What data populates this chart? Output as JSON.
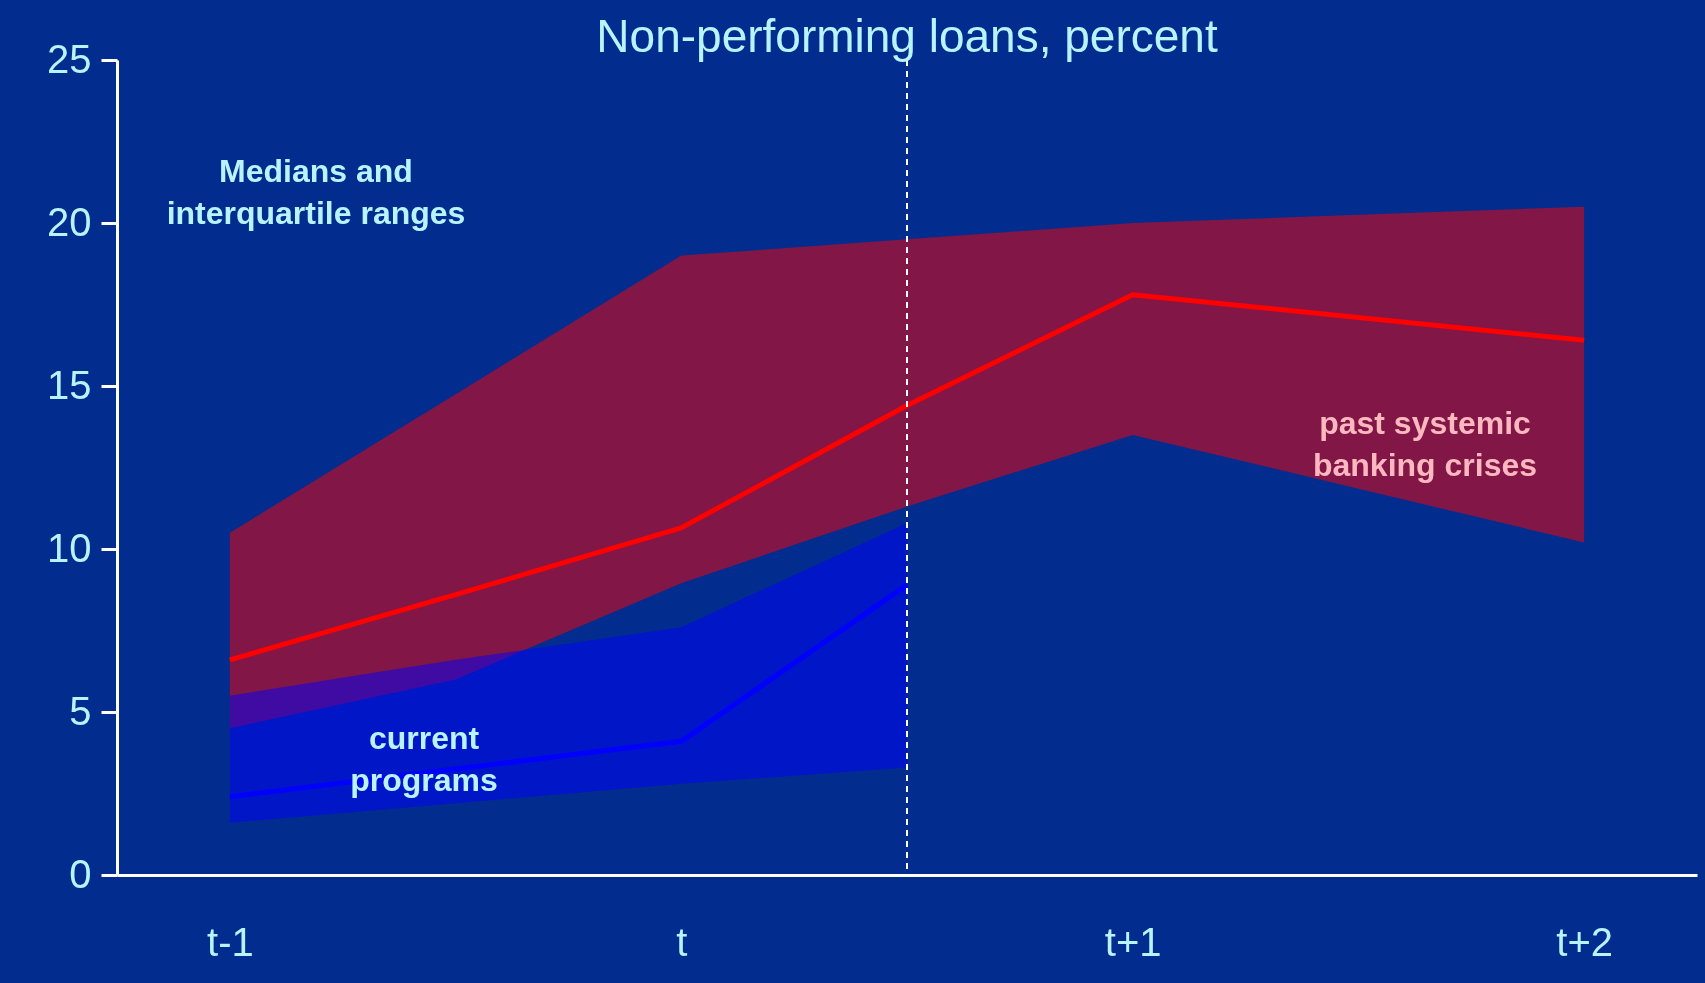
{
  "chart_data": {
    "type": "area",
    "title": "Non-performing loans, percent",
    "categories": [
      "t-1",
      null,
      "t",
      null,
      "t+1",
      null,
      "t+2"
    ],
    "ylim": [
      0,
      25
    ],
    "yticks": [
      0,
      5,
      10,
      15,
      20,
      25
    ],
    "series": [
      {
        "type": "line",
        "color": "#ff0000",
        "values": [
          6.6,
          8.6,
          10.65,
          14.4,
          17.8,
          17.1,
          16.4
        ],
        "lower": [
          4.5,
          6.0,
          8.95,
          11.3,
          13.5,
          11.85,
          10.2
        ],
        "upper": [
          10.5,
          14.75,
          19.0,
          19.5,
          20.0,
          20.25,
          20.5
        ]
      },
      {
        "type": "line",
        "color": "#0000ff",
        "values": [
          2.4,
          3.25,
          4.1,
          8.9,
          null,
          null,
          null
        ],
        "lower": [
          1.6,
          2.2,
          2.8,
          3.3,
          null,
          null,
          null
        ],
        "upper": [
          5.5,
          6.6,
          7.6,
          10.8,
          null,
          null,
          null
        ]
      }
    ],
    "annotations": [
      "Medians and\ninterquartile ranges",
      "past systemic\nbanking crises",
      "current\nprograms"
    ]
  }
}
